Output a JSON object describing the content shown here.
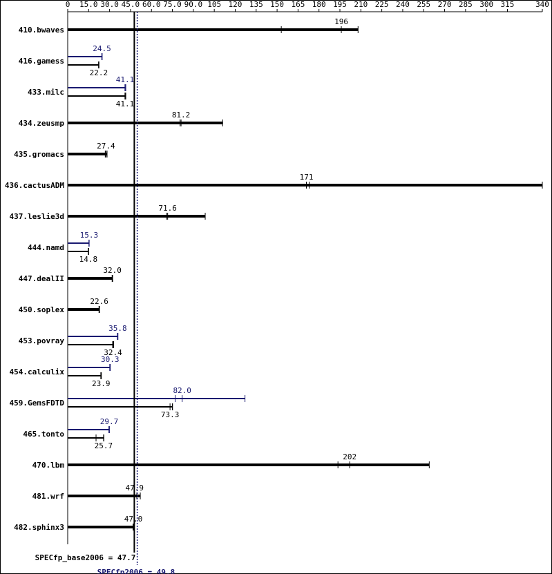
{
  "chart_data": {
    "type": "bar",
    "xlim": [
      0,
      340
    ],
    "xticks": [
      0,
      {
        "value": 15,
        "label": "15.0"
      },
      {
        "value": 30,
        "label": "30.0"
      },
      {
        "value": 45,
        "label": "45.0"
      },
      {
        "value": 60,
        "label": "60.0"
      },
      {
        "value": 75,
        "label": "75.0"
      },
      {
        "value": 90,
        "label": "90.0"
      },
      105,
      120,
      135,
      150,
      165,
      180,
      195,
      210,
      225,
      240,
      255,
      270,
      285,
      300,
      315,
      340
    ],
    "categories": [
      "410.bwaves",
      "416.gamess",
      "433.milc",
      "434.zeusmp",
      "435.gromacs",
      "436.cactusADM",
      "437.leslie3d",
      "444.namd",
      "447.dealII",
      "450.soplex",
      "453.povray",
      "454.calculix",
      "459.GemsFDTD",
      "465.tonto",
      "470.lbm",
      "481.wrf",
      "482.sphinx3"
    ],
    "base": {
      "color": "#000000",
      "values": [
        196,
        22.2,
        41.1,
        81.2,
        27.4,
        171,
        71.6,
        14.8,
        32.0,
        22.6,
        32.4,
        23.9,
        73.3,
        25.7,
        202,
        47.9,
        47.0
      ],
      "value_labels": [
        "196",
        "22.2",
        "41.1",
        "81.2",
        "27.4",
        "171",
        "71.6",
        "14.8",
        "32.0",
        "22.6",
        "32.4",
        "23.9",
        "73.3",
        "25.7",
        "202",
        "47.9",
        "47.0"
      ],
      "runs": [
        [
          153,
          208
        ],
        [
          22.1,
          22.4
        ],
        [
          41.0,
          41.6
        ],
        [
          80.5,
          111
        ],
        [
          26.9,
          28.2
        ],
        [
          173,
          340
        ],
        [
          70.8,
          98.5
        ],
        [
          14.7,
          15.0
        ],
        [
          31.8,
          32.2
        ],
        [
          22.4,
          22.8
        ],
        [
          32.2,
          32.9
        ],
        [
          23.7,
          24.1
        ],
        [
          75.0,
          75.1
        ],
        [
          20.3,
          25.9
        ],
        [
          193.6,
          259
        ],
        [
          49.5,
          52.0
        ],
        [
          46.8,
          47.3
        ]
      ]
    },
    "peak": {
      "color": "#191970",
      "values": [
        null,
        24.5,
        41.1,
        null,
        null,
        null,
        null,
        15.3,
        null,
        null,
        35.8,
        30.3,
        82.0,
        29.7,
        null,
        null,
        null
      ],
      "value_labels": [
        null,
        "24.5",
        "41.1",
        null,
        null,
        null,
        null,
        "15.3",
        null,
        null,
        "35.8",
        "30.3",
        "82.0",
        "29.7",
        null,
        null,
        null
      ],
      "runs": [
        [],
        [
          24.4,
          24.7
        ],
        [
          41.0,
          41.6
        ],
        [],
        [],
        [],
        [],
        [
          15.2,
          15.4
        ],
        [],
        [],
        [
          35.6,
          36.0
        ],
        [
          30.1,
          30.5
        ],
        [
          77.0,
          127
        ],
        [
          29.5,
          29.9
        ],
        [],
        [],
        []
      ]
    },
    "summary": [
      {
        "label": "SPECfp_base2006 = 47.7",
        "value": 47.7,
        "color": "#000000",
        "style": "solid"
      },
      {
        "label": "SPECfp2006 = 49.8",
        "value": 49.8,
        "color": "#191970",
        "style": "dotted"
      }
    ]
  }
}
